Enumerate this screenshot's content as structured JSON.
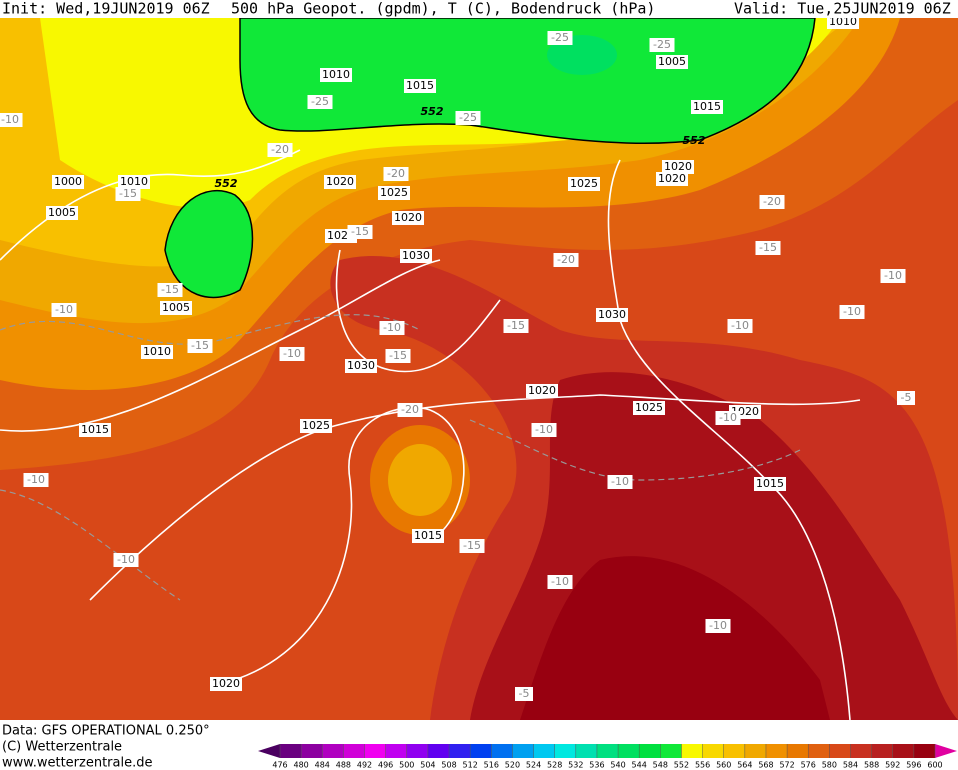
{
  "header": {
    "init": "Init: Wed,19JUN2019 06Z",
    "title": "500 hPa Geopot. (gpdm), T (C), Bodendruck (hPa)",
    "valid": "Valid: Tue,25JUN2019 06Z"
  },
  "contour_labels": {
    "isobars": [
      "1010",
      "1015",
      "1005",
      "1015",
      "1000",
      "1010",
      "1005",
      "1020",
      "1025",
      "1020",
      "1025",
      "1030",
      "1025",
      "1020",
      "1020",
      "1030",
      "1030",
      "1020",
      "1025",
      "1020",
      "1025",
      "1015",
      "1005",
      "1010",
      "1015",
      "1015",
      "1020",
      "1010"
    ],
    "geopotential": [
      "552",
      "552",
      "552"
    ],
    "temperature": [
      "-25",
      "-25",
      "-25",
      "-25",
      "-20",
      "-20",
      "-10",
      "-15",
      "-20",
      "-15",
      "-20",
      "-15",
      "-10",
      "-15",
      "-10",
      "-10",
      "-15",
      "-15",
      "-10",
      "-10",
      "-10",
      "-5",
      "-20",
      "-10",
      "-10",
      "-10",
      "-10",
      "-15",
      "-10",
      "-10",
      "-10",
      "-5",
      "-15"
    ]
  },
  "colorbar": {
    "ticks": [
      476,
      480,
      484,
      488,
      492,
      496,
      500,
      504,
      508,
      512,
      516,
      520,
      524,
      528,
      532,
      536,
      540,
      544,
      548,
      552,
      556,
      560,
      564,
      568,
      572,
      576,
      580,
      584,
      588,
      592,
      596,
      600
    ],
    "colors": [
      "#4a0060",
      "#6a0080",
      "#8c00a0",
      "#b000c0",
      "#d000d8",
      "#f000f0",
      "#c000f0",
      "#9000f0",
      "#6000f0",
      "#3020f0",
      "#0040f0",
      "#0070f0",
      "#00a0f0",
      "#00c8f0",
      "#00e8e0",
      "#00e0b0",
      "#00e080",
      "#00e060",
      "#00e040",
      "#10e838",
      "#f8f800",
      "#f8d800",
      "#f8c000",
      "#f0a800",
      "#f09000",
      "#e87800",
      "#e06010",
      "#d84818",
      "#c83020",
      "#b82020",
      "#a81018",
      "#980010",
      "#e000a0"
    ]
  },
  "footer": {
    "data": "Data: GFS OPERATIONAL 0.250°",
    "copyright": "(C) Wetterzentrale",
    "url": "www.wetterzentrale.de"
  }
}
